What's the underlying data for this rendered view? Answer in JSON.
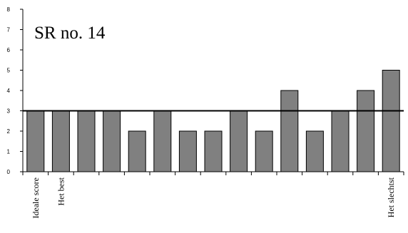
{
  "chart_data": {
    "type": "bar",
    "title": "SR no. 14",
    "xlabel": "",
    "ylabel": "",
    "ylim": [
      0,
      8
    ],
    "yticks": [
      "0",
      "1",
      "2",
      "3",
      "4",
      "5",
      "6",
      "7",
      "8"
    ],
    "categories": [
      "Ideale score",
      "Het best",
      "",
      "",
      "",
      "",
      "",
      "",
      "",
      "",
      "",
      "",
      "",
      "",
      "Het slechtst"
    ],
    "values": [
      3,
      3,
      3,
      3,
      2,
      3,
      2,
      2,
      3,
      2,
      4,
      2,
      3,
      4,
      5
    ],
    "reference_line": 3,
    "grid": false,
    "legend": "none",
    "colors": {
      "bar_fill": "#808080",
      "bar_stroke": "#000000",
      "axis": "#000000",
      "reference_line": "#000000"
    }
  }
}
